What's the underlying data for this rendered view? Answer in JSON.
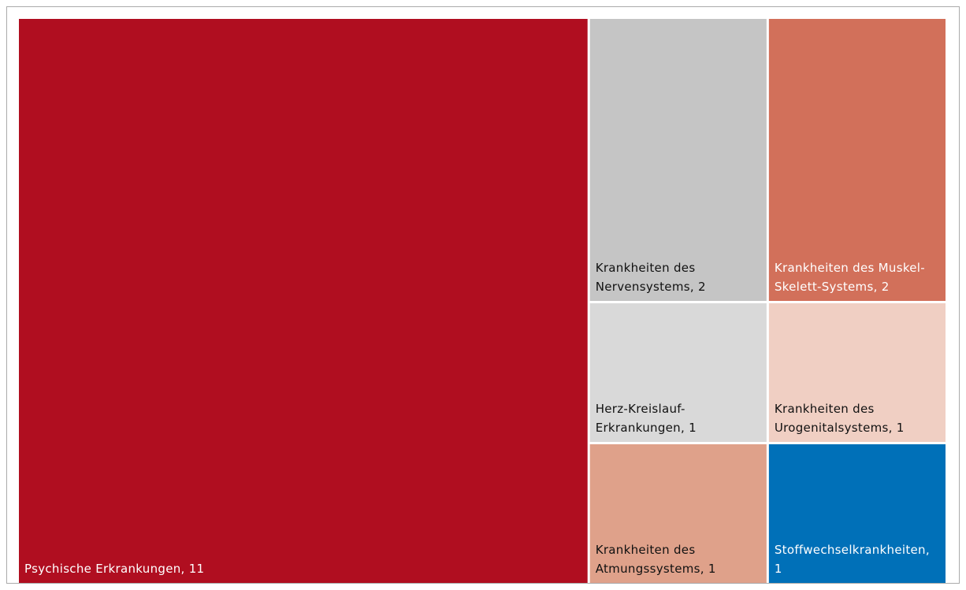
{
  "chart_data": {
    "type": "treemap",
    "values": [
      11,
      2,
      2,
      1,
      1,
      1,
      1
    ],
    "value_labels": [
      "Psychische Erkrankungen, 11",
      "Krankheiten des Nervensystems, 2",
      "Krankheiten des Muskel-Skelett-Systems, 2",
      "Herz-Kreislauf-Erkrankungen, 1",
      "Krankheiten des Urogenitalsystems, 1",
      "Krankheiten des Atmungssystems, 1",
      "Stoffwechselkrankheiten, 1"
    ],
    "colors": [
      "#b00e20",
      "#c5c5c5",
      "#d2705a",
      "#d9d9d9",
      "#f0cfc3",
      "#dfa18a",
      "#0070b8"
    ]
  }
}
